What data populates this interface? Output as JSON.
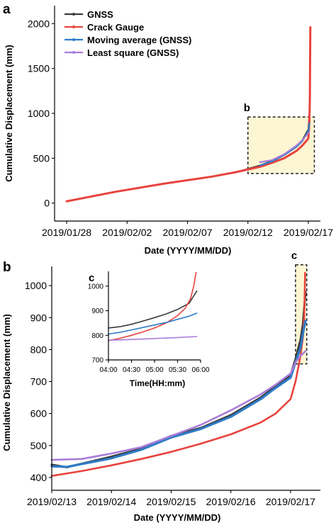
{
  "chart_data": [
    {
      "type": "line",
      "panel_label": "a",
      "xlabel": "Date (YYYY/MM/DD)",
      "ylabel": "Cumulative Displacement (mm)",
      "xlim": [
        "2019/01/27",
        "2019/02/18"
      ],
      "ylim": [
        -200,
        2200
      ],
      "x_ticks": [
        "2019/01/28",
        "2019/02/02",
        "2019/02/07",
        "2019/02/12",
        "2019/02/17"
      ],
      "y_ticks": [
        0,
        500,
        1000,
        1500,
        2000
      ],
      "legend_position": "top-left",
      "zoom_box_label": "b",
      "zoom_box": {
        "x": [
          "2019/02/12",
          "2019/02/17 12:00"
        ],
        "y": [
          330,
          960
        ]
      },
      "series": [
        {
          "name": "GNSS",
          "color": "#3a3a3a",
          "x": [
            "2019/01/28",
            "2019/02/01",
            "2019/02/05",
            "2019/02/09",
            "2019/02/11",
            "2019/02/13",
            "2019/02/14",
            "2019/02/15",
            "2019/02/16",
            "2019/02/16 12:00",
            "2019/02/17",
            "2019/02/17 02:00"
          ],
          "y": [
            20,
            125,
            215,
            295,
            345,
            420,
            470,
            540,
            630,
            700,
            820,
            980
          ]
        },
        {
          "name": "Crack Gauge",
          "color": "#e8433e",
          "x": [
            "2019/01/28",
            "2019/02/01",
            "2019/02/05",
            "2019/02/09",
            "2019/02/11",
            "2019/02/13",
            "2019/02/14",
            "2019/02/15",
            "2019/02/16",
            "2019/02/16 12:00",
            "2019/02/17",
            "2019/02/17 02:00",
            "2019/02/17 03:00",
            "2019/02/17 04:00"
          ],
          "y": [
            20,
            125,
            215,
            295,
            345,
            405,
            450,
            500,
            580,
            640,
            720,
            900,
            1150,
            1960
          ]
        },
        {
          "name": "Moving average (GNSS)",
          "color": "#2f7cc6",
          "x": [
            "2019/02/13",
            "2019/02/14",
            "2019/02/15",
            "2019/02/16",
            "2019/02/16 12:00",
            "2019/02/17",
            "2019/02/17 02:00"
          ],
          "y": [
            420,
            465,
            535,
            625,
            690,
            800,
            890
          ]
        },
        {
          "name": "Least square (GNSS)",
          "color": "#a97cd8",
          "x": [
            "2019/02/13",
            "2019/02/14",
            "2019/02/15",
            "2019/02/16",
            "2019/02/16 12:00",
            "2019/02/17",
            "2019/02/17 02:00"
          ],
          "y": [
            455,
            480,
            545,
            640,
            700,
            780,
            795
          ]
        }
      ]
    },
    {
      "type": "line",
      "panel_label": "b",
      "xlabel": "Date (YYYY/MM/DD)",
      "ylabel": "Cumulative Displacement (mm)",
      "xlim": [
        "2019/02/13",
        "2019/02/17 12:00"
      ],
      "ylim": [
        360,
        1060
      ],
      "x_ticks": [
        "2019/02/13",
        "2019/02/14",
        "2019/02/15",
        "2019/02/16",
        "2019/02/17"
      ],
      "y_ticks": [
        400,
        500,
        600,
        700,
        800,
        900,
        1000
      ],
      "zoom_box_label": "c",
      "zoom_box": {
        "x": [
          "2019/02/17 02:00",
          "2019/02/17 06:30"
        ],
        "y": [
          755,
          1065
        ]
      },
      "series": [
        {
          "name": "GNSS",
          "color": "#3a3a3a",
          "x": [
            "2019/02/13",
            "2019/02/13 06:00",
            "2019/02/14",
            "2019/02/14 12:00",
            "2019/02/15",
            "2019/02/15 12:00",
            "2019/02/16",
            "2019/02/16 12:00",
            "2019/02/16 18:00",
            "2019/02/17",
            "2019/02/17 02:00",
            "2019/02/17 04:00",
            "2019/02/17 05:00",
            "2019/02/17 06:00"
          ],
          "y": [
            440,
            432,
            465,
            490,
            530,
            555,
            595,
            650,
            685,
            720,
            770,
            830,
            880,
            980
          ]
        },
        {
          "name": "Crack Gauge",
          "color": "#e8433e",
          "x": [
            "2019/02/13",
            "2019/02/13 12:00",
            "2019/02/14",
            "2019/02/14 12:00",
            "2019/02/15",
            "2019/02/15 12:00",
            "2019/02/16",
            "2019/02/16 12:00",
            "2019/02/16 18:00",
            "2019/02/17",
            "2019/02/17 02:00",
            "2019/02/17 04:00",
            "2019/02/17 05:00",
            "2019/02/17 05:30",
            "2019/02/17 05:50"
          ],
          "y": [
            405,
            420,
            438,
            458,
            480,
            506,
            535,
            572,
            600,
            645,
            700,
            780,
            840,
            900,
            1040
          ]
        },
        {
          "name": "Moving average (GNSS)",
          "color": "#2f7cc6",
          "x": [
            "2019/02/13",
            "2019/02/13 06:00",
            "2019/02/14",
            "2019/02/14 12:00",
            "2019/02/15",
            "2019/02/15 12:00",
            "2019/02/16",
            "2019/02/16 12:00",
            "2019/02/16 18:00",
            "2019/02/17",
            "2019/02/17 02:00",
            "2019/02/17 04:00",
            "2019/02/17 05:00",
            "2019/02/17 06:00"
          ],
          "y": [
            435,
            433,
            460,
            487,
            525,
            552,
            590,
            645,
            680,
            712,
            760,
            805,
            850,
            890
          ]
        },
        {
          "name": "Least square (GNSS)",
          "color": "#a97cd8",
          "x": [
            "2019/02/13",
            "2019/02/13 12:00",
            "2019/02/14",
            "2019/02/14 12:00",
            "2019/02/15",
            "2019/02/15 12:00",
            "2019/02/16",
            "2019/02/16 12:00",
            "2019/02/16 18:00",
            "2019/02/17",
            "2019/02/17 02:00",
            "2019/02/17 04:00",
            "2019/02/17 06:00"
          ],
          "y": [
            455,
            458,
            475,
            495,
            530,
            565,
            610,
            660,
            690,
            725,
            760,
            780,
            795
          ]
        }
      ]
    },
    {
      "type": "line",
      "panel_label": "c",
      "xlabel": "Time(HH:mm)",
      "xlim": [
        "04:00",
        "06:00"
      ],
      "ylim": [
        700,
        1060
      ],
      "x_ticks": [
        "04:00",
        "04:30",
        "05:00",
        "05:30",
        "06:00"
      ],
      "y_ticks": [
        700,
        800,
        900,
        1000
      ],
      "series": [
        {
          "name": "GNSS",
          "color": "#3a3a3a",
          "x": [
            "04:00",
            "04:15",
            "04:30",
            "04:45",
            "05:00",
            "05:15",
            "05:30",
            "05:45",
            "05:55"
          ],
          "y": [
            830,
            835,
            845,
            858,
            872,
            887,
            905,
            930,
            980
          ]
        },
        {
          "name": "Crack Gauge",
          "color": "#e8433e",
          "x": [
            "04:00",
            "04:15",
            "04:30",
            "04:45",
            "05:00",
            "05:15",
            "05:30",
            "05:40",
            "05:47",
            "05:51",
            "05:54"
          ],
          "y": [
            778,
            788,
            800,
            814,
            830,
            850,
            880,
            910,
            950,
            1000,
            1055
          ]
        },
        {
          "name": "Moving average (GNSS)",
          "color": "#2f7cc6",
          "x": [
            "04:00",
            "04:15",
            "04:30",
            "04:45",
            "05:00",
            "05:15",
            "05:30",
            "05:45",
            "05:55"
          ],
          "y": [
            805,
            812,
            822,
            832,
            842,
            852,
            865,
            878,
            890
          ]
        },
        {
          "name": "Least square (GNSS)",
          "color": "#a97cd8",
          "x": [
            "04:00",
            "04:30",
            "05:00",
            "05:30",
            "05:55"
          ],
          "y": [
            780,
            783,
            787,
            791,
            795
          ]
        }
      ]
    }
  ]
}
